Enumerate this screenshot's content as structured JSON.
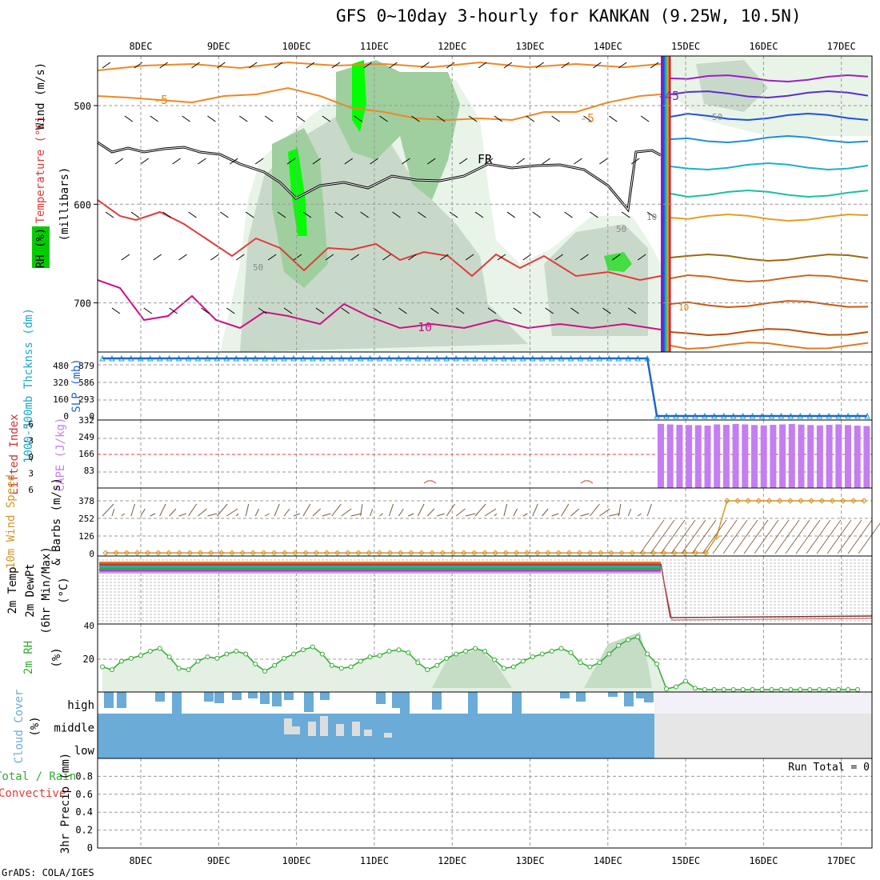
{
  "title": "GFS 0~10day 3-hourly for KANKAN (9.25W, 10.5N)",
  "credit": "GrADS: COLA/IGES",
  "colors": {
    "rh_light": "#e8f4e8",
    "rh_mid": "#c9d9c9",
    "rh_dark": "#9fcf9f",
    "rh_bright": "#44dd44",
    "rh_lime": "#00ff00",
    "freezing": "#000000",
    "temp_warm": "#e03c3c",
    "temp_hot": "#cc1188",
    "temp_cool": "#ee8822",
    "thickness": "#19a7c8",
    "slp": "#1f66cc",
    "cape": "#c47ef2",
    "lifted_index": "#cc3333",
    "wind": "#d4942a",
    "rh2m": "#33aa33",
    "cloud": "#6aabd7",
    "grid": "#999999"
  },
  "chart_data": [
    {
      "panel": "upper-air",
      "type": "heatmap",
      "x_tick_labels": [
        "8DEC",
        "9DEC",
        "10DEC",
        "11DEC",
        "12DEC",
        "13DEC",
        "14DEC",
        "15DEC",
        "16DEC",
        "17DEC"
      ],
      "y_ticks": [
        500,
        600,
        700
      ],
      "ylabel": "(millibars)",
      "legend": [
        "RH (%)",
        "Temperature (°C)",
        "Wind (m/s)"
      ],
      "contour_labels": [
        "-5",
        "-5",
        "FR",
        "10",
        "-45",
        "10",
        "50",
        "50",
        "50",
        "10"
      ]
    },
    {
      "panel": "thickness-slp",
      "type": "line",
      "label_left": "1000-500mb Thcknss (dm)",
      "label_right": "SLP (mb)",
      "yticks_left": [
        480,
        320,
        160,
        0
      ],
      "yticks_right": [
        879,
        586,
        293,
        0
      ],
      "series": [
        {
          "name": "SLP",
          "values": [
            879,
            879,
            879,
            879,
            879,
            879,
            879,
            879,
            879,
            879,
            879,
            879,
            879,
            879,
            879,
            879,
            879,
            879,
            879,
            879,
            879,
            879,
            879,
            879,
            879,
            879,
            879,
            879,
            879,
            879,
            879,
            879,
            879,
            879,
            879,
            879,
            879,
            879,
            879,
            879,
            879,
            879,
            879,
            879,
            879,
            879,
            879,
            879,
            879,
            879,
            879,
            879,
            879,
            879,
            879,
            879,
            879,
            879,
            0,
            0,
            0,
            0,
            0,
            0,
            0,
            0,
            0,
            0,
            0,
            0,
            0,
            0,
            0,
            0,
            0,
            0,
            0,
            0,
            0,
            0,
            0
          ]
        }
      ]
    },
    {
      "panel": "cape-li",
      "type": "bar",
      "label_left": "Lifted Index",
      "label_right": "CAPE (J/kg)",
      "yticks_left": [
        "-6",
        "-3",
        "0",
        "3",
        "6"
      ],
      "yticks_right": [
        332,
        249,
        166,
        83
      ],
      "cape_bars_from_step": 58,
      "cape_values": [
        320,
        318,
        316,
        315,
        314,
        312,
        318,
        316,
        320,
        318,
        315,
        313,
        316,
        318,
        320,
        317,
        315,
        313,
        316,
        318,
        315,
        312,
        310
      ]
    },
    {
      "panel": "wind10m",
      "type": "line",
      "label_left": "10m Wind Speed",
      "label_right": "& Barbs (m/s)",
      "yticks": [
        378,
        252,
        126,
        0
      ],
      "series": [
        {
          "name": "10m Wind Speed",
          "values": [
            5,
            5,
            5,
            5,
            5,
            5,
            5,
            5,
            5,
            5,
            5,
            5,
            5,
            5,
            5,
            5,
            5,
            5,
            5,
            5,
            5,
            5,
            5,
            5,
            5,
            5,
            5,
            5,
            5,
            5,
            5,
            5,
            5,
            5,
            5,
            5,
            5,
            5,
            5,
            5,
            5,
            5,
            5,
            5,
            5,
            5,
            5,
            5,
            5,
            5,
            5,
            5,
            5,
            5,
            5,
            5,
            5,
            5,
            120,
            378,
            378,
            378,
            378,
            378,
            378,
            378,
            378,
            378,
            378,
            378,
            378,
            378,
            378
          ]
        }
      ]
    },
    {
      "panel": "temp2m",
      "type": "line",
      "label": "2m Temp 2m DewPt (6hr Min/Max) (°C)",
      "yticks": [
        40
      ]
    },
    {
      "panel": "rh2m",
      "type": "area",
      "label": "2m RH (%)",
      "yticks": [
        20
      ],
      "ylim": [
        0,
        45
      ],
      "series": [
        {
          "name": "2m RH",
          "values": [
            16,
            14,
            20,
            22,
            24,
            27,
            29,
            23,
            15,
            14,
            20,
            23,
            22,
            25,
            27,
            25,
            18,
            13,
            17,
            22,
            25,
            28,
            30,
            25,
            17,
            15,
            16,
            20,
            23,
            24,
            27,
            28,
            26,
            19,
            14,
            17,
            22,
            25,
            27,
            29,
            27,
            21,
            15,
            16,
            20,
            23,
            25,
            27,
            29,
            26,
            19,
            16,
            19,
            25,
            31,
            35,
            37,
            25,
            18,
            0.5,
            2,
            6,
            1,
            0,
            0,
            0,
            0,
            0,
            0,
            0,
            0,
            0,
            0,
            0,
            0,
            0,
            0,
            0,
            0,
            0
          ]
        }
      ]
    },
    {
      "panel": "cloud",
      "type": "heatmap",
      "label": "Cloud Cover (%)",
      "row_labels": [
        "high",
        "middle",
        "low"
      ]
    },
    {
      "panel": "precip",
      "type": "bar",
      "label_left": "Total / Rain",
      "label_left2": "Convective",
      "label_right": "3hr Precip (mm)",
      "yticks": [
        "0.8",
        "0.6",
        "0.4",
        "0.2",
        "0"
      ],
      "ylim": [
        0,
        1
      ],
      "run_total": "Run Total = 0"
    }
  ]
}
